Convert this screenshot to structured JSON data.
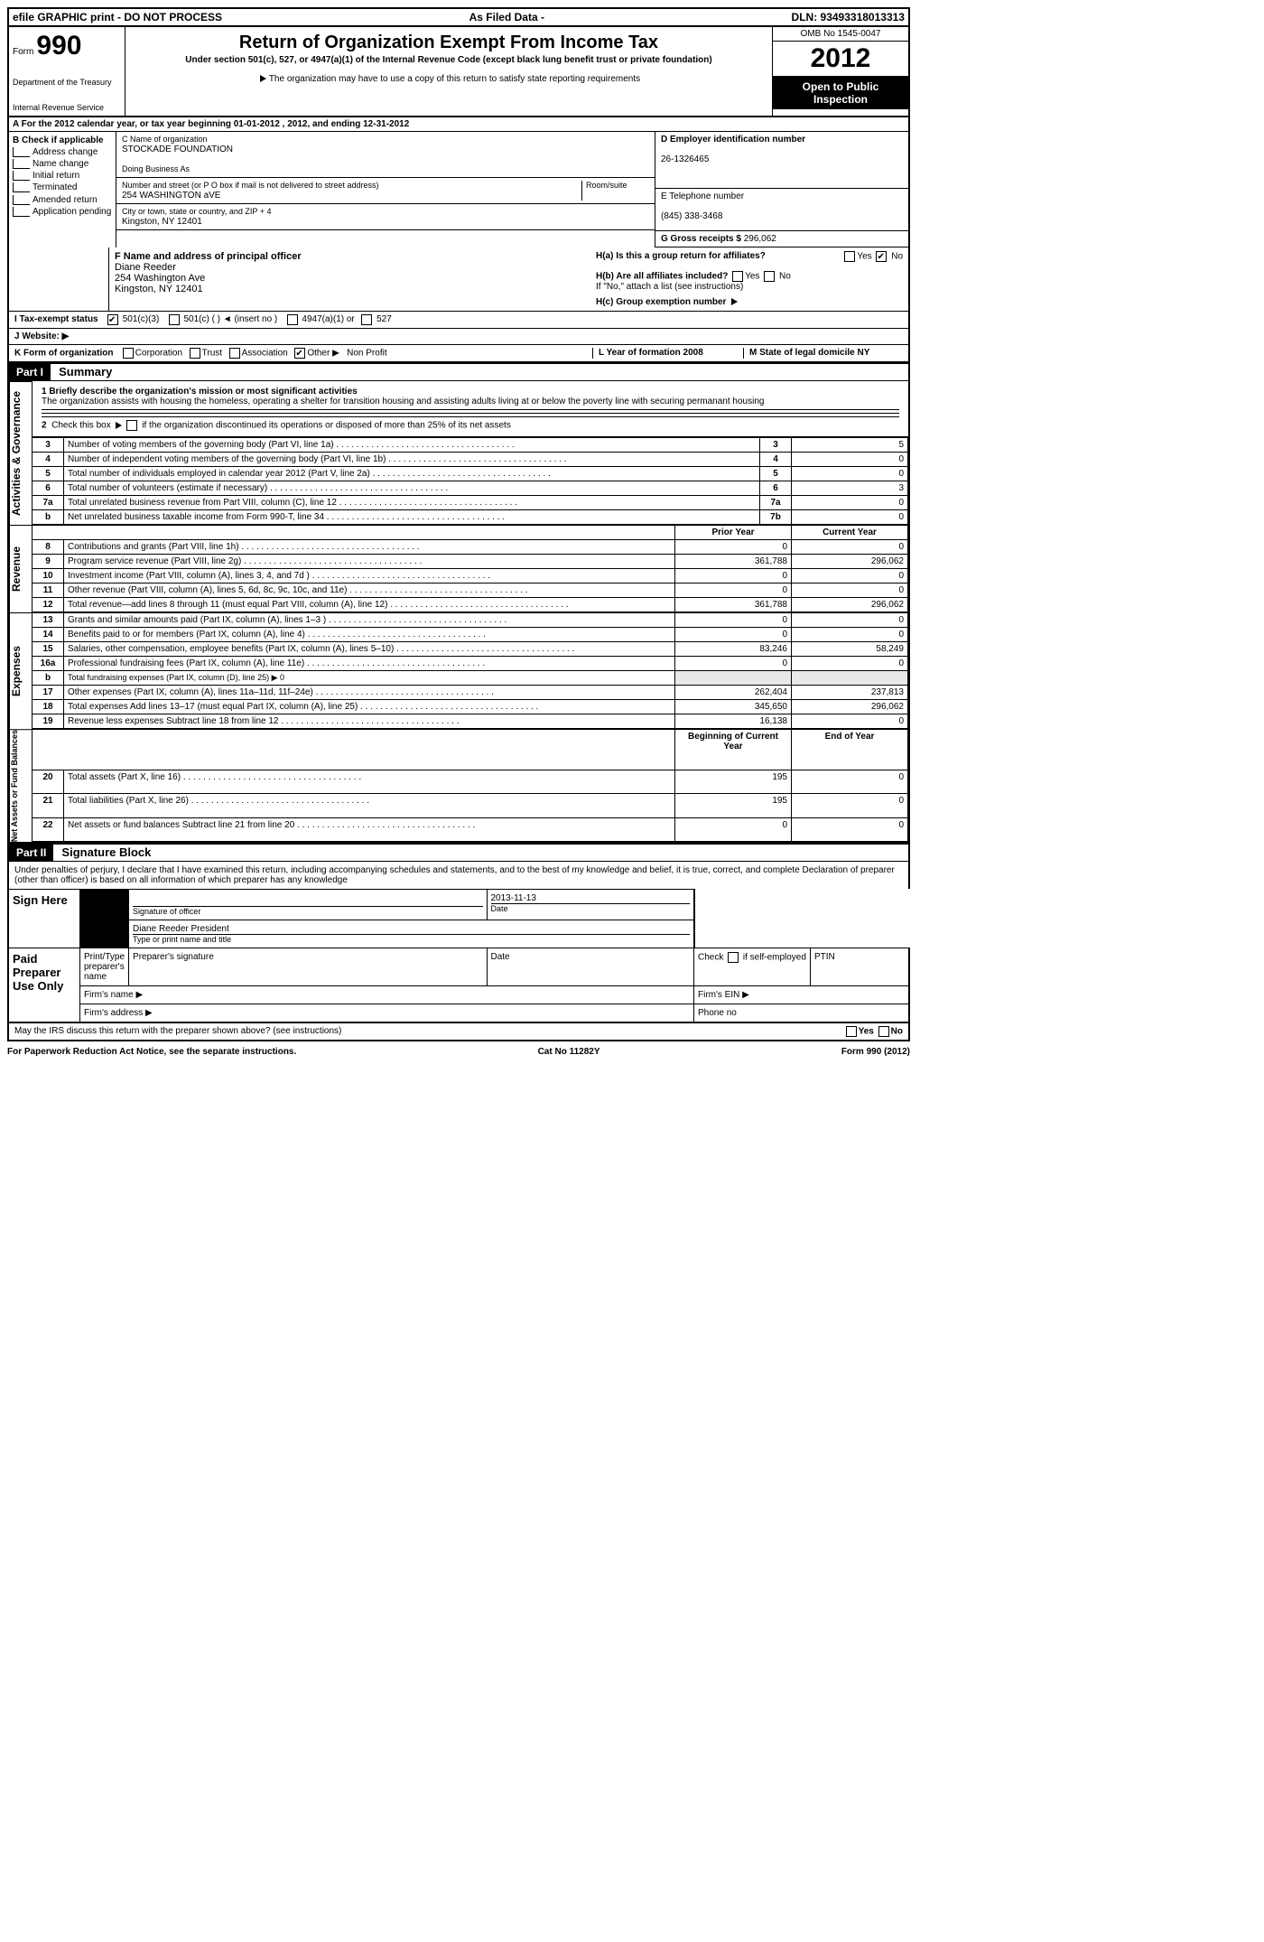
{
  "topbar": {
    "left": "efile GRAPHIC print - DO NOT PROCESS",
    "mid": "As Filed Data -",
    "right": "DLN: 93493318013313"
  },
  "header": {
    "form_word": "Form",
    "form_no": "990",
    "dept1": "Department of the Treasury",
    "dept2": "Internal Revenue Service",
    "title": "Return of Organization Exempt From Income Tax",
    "sub": "Under section 501(c), 527, or 4947(a)(1) of the Internal Revenue Code (except black lung benefit trust or private foundation)",
    "note": "The organization may have to use a copy of this return to satisfy state reporting requirements",
    "omb": "OMB No 1545-0047",
    "year": "2012",
    "open": "Open to Public Inspection"
  },
  "rowA": "A  For the 2012 calendar year, or tax year beginning 01-01-2012     , 2012, and ending 12-31-2012",
  "B": {
    "head": "B Check if applicable",
    "items": [
      "Address change",
      "Name change",
      "Initial return",
      "Terminated",
      "Amended return",
      "Application pending"
    ]
  },
  "C": {
    "name_label": "C Name of organization",
    "name": "STOCKADE FOUNDATION",
    "dba_label": "Doing Business As",
    "dba": "",
    "addr_label": "Number and street (or P O  box if mail is not delivered to street address)",
    "room_label": "Room/suite",
    "addr": "254 WASHINGTON aVE",
    "city_label": "City or town, state or country, and ZIP + 4",
    "city": "Kingston, NY  12401"
  },
  "D": {
    "ein_label": "D Employer identification number",
    "ein": "26-1326465",
    "phone_label": "E Telephone number",
    "phone": "(845) 338-3468",
    "gross_label": "G Gross receipts $",
    "gross": "296,062"
  },
  "F": {
    "label": "F   Name and address of principal officer",
    "name": "Diane Reeder",
    "addr1": "254 Washington Ave",
    "addr2": "Kingston, NY  12401"
  },
  "H": {
    "a": "H(a)  Is this a group return for affiliates?",
    "b": "H(b)  Are all affiliates included?",
    "b2": "If \"No,\" attach a list  (see instructions)",
    "c": "H(c)   Group exemption number"
  },
  "I": "I   Tax-exempt status",
  "I_opts": [
    "501(c)(3)",
    "501(c) (  )  ◄ (insert no )",
    "4947(a)(1) or",
    "527"
  ],
  "J": "J  Website: ▶",
  "K": {
    "label": "K Form of organization",
    "opts": [
      "Corporation",
      "Trust",
      "Association",
      "Other ▶"
    ],
    "other": "Non Profit",
    "L": "L Year of formation  2008",
    "M": "M State of legal domicile  NY"
  },
  "part1": {
    "bar": "Part I",
    "title": "Summary"
  },
  "summary": {
    "s1_label": "1   Briefly describe the organization's mission or most significant activities",
    "s1_text": "The organization assists with housing the homeless, operating a shelter for transition housing and assisting adults living at or below the poverty line with securing permanant housing",
    "s2": "2   Check this box ▶    if the organization discontinued its operations or disposed of more than 25% of its net assets",
    "rows_top": [
      {
        "n": "3",
        "label": "Number of voting members of the governing body (Part VI, line 1a)",
        "box": "3",
        "val": "5"
      },
      {
        "n": "4",
        "label": "Number of independent voting members of the governing body (Part VI, line 1b)",
        "box": "4",
        "val": "0"
      },
      {
        "n": "5",
        "label": "Total number of individuals employed in calendar year 2012 (Part V, line 2a)",
        "box": "5",
        "val": "0"
      },
      {
        "n": "6",
        "label": "Total number of volunteers (estimate if necessary)",
        "box": "6",
        "val": "3"
      },
      {
        "n": "7a",
        "label": "Total unrelated business revenue from Part VIII, column (C), line 12",
        "box": "7a",
        "val": "0"
      },
      {
        "n": "b",
        "label": "Net unrelated business taxable income from Form 990-T, line 34",
        "box": "7b",
        "val": "0"
      }
    ],
    "col_prior": "Prior Year",
    "col_curr": "Current Year",
    "revenue": [
      {
        "n": "8",
        "label": "Contributions and grants (Part VIII, line 1h)",
        "p": "0",
        "c": "0"
      },
      {
        "n": "9",
        "label": "Program service revenue (Part VIII, line 2g)",
        "p": "361,788",
        "c": "296,062"
      },
      {
        "n": "10",
        "label": "Investment income (Part VIII, column (A), lines 3, 4, and 7d )",
        "p": "0",
        "c": "0"
      },
      {
        "n": "11",
        "label": "Other revenue (Part VIII, column (A), lines 5, 6d, 8c, 9c, 10c, and 11e)",
        "p": "0",
        "c": "0"
      },
      {
        "n": "12",
        "label": "Total revenue—add lines 8 through 11 (must equal Part VIII, column (A), line 12)",
        "p": "361,788",
        "c": "296,062"
      }
    ],
    "expenses": [
      {
        "n": "13",
        "label": "Grants and similar amounts paid (Part IX, column (A), lines 1–3 )",
        "p": "0",
        "c": "0"
      },
      {
        "n": "14",
        "label": "Benefits paid to or for members (Part IX, column (A), line 4)",
        "p": "0",
        "c": "0"
      },
      {
        "n": "15",
        "label": "Salaries, other compensation, employee benefits (Part IX, column (A), lines 5–10)",
        "p": "83,246",
        "c": "58,249"
      },
      {
        "n": "16a",
        "label": "Professional fundraising fees (Part IX, column (A), line 11e)",
        "p": "0",
        "c": "0"
      },
      {
        "n": "b",
        "label": "Total fundraising expenses (Part IX, column (D), line 25) ▶ 0",
        "p": "",
        "c": ""
      },
      {
        "n": "17",
        "label": "Other expenses (Part IX, column (A), lines 11a–11d, 11f–24e)",
        "p": "262,404",
        "c": "237,813"
      },
      {
        "n": "18",
        "label": "Total expenses  Add lines 13–17 (must equal Part IX, column (A), line 25)",
        "p": "345,650",
        "c": "296,062"
      },
      {
        "n": "19",
        "label": "Revenue less expenses  Subtract line 18 from line 12",
        "p": "16,138",
        "c": "0"
      }
    ],
    "col_beg": "Beginning of Current Year",
    "col_end": "End of Year",
    "netassets": [
      {
        "n": "20",
        "label": "Total assets (Part X, line 16)",
        "p": "195",
        "c": "0"
      },
      {
        "n": "21",
        "label": "Total liabilities (Part X, line 26)",
        "p": "195",
        "c": "0"
      },
      {
        "n": "22",
        "label": "Net assets or fund balances  Subtract line 21 from line 20",
        "p": "0",
        "c": "0"
      }
    ],
    "side_labels": {
      "ag": "Activities & Governance",
      "rev": "Revenue",
      "exp": "Expenses",
      "na": "Net Assets or\nFund Balances"
    }
  },
  "part2": {
    "bar": "Part II",
    "title": "Signature Block"
  },
  "sig": {
    "decl": "Under penalties of perjury, I declare that I have examined this return, including accompanying schedules and statements, and to the best of my knowledge and belief, it is true, correct, and complete  Declaration of preparer (other than officer) is based on all information of which preparer has any knowledge",
    "sign_here": "Sign Here",
    "sig_officer": "Signature of officer",
    "date_label": "Date",
    "date": "2013-11-13",
    "name_title": "Diane Reeder President",
    "type_label": "Type or print name and title",
    "paid": "Paid Preparer Use Only",
    "prep_name": "Print/Type preparer's name",
    "prep_sig": "Preparer's signature",
    "check_self": "Check        if self-employed",
    "ptin": "PTIN",
    "firm_name": "Firm's name   ▶",
    "firm_ein": "Firm's EIN ▶",
    "firm_addr": "Firm's address ▶",
    "phone": "Phone no",
    "discuss": "May the IRS discuss this return with the preparer shown above? (see instructions)",
    "yes": "Yes",
    "no": "No"
  },
  "footer": {
    "left": "For Paperwork Reduction Act Notice, see the separate instructions.",
    "mid": "Cat No  11282Y",
    "right": "Form 990 (2012)"
  }
}
